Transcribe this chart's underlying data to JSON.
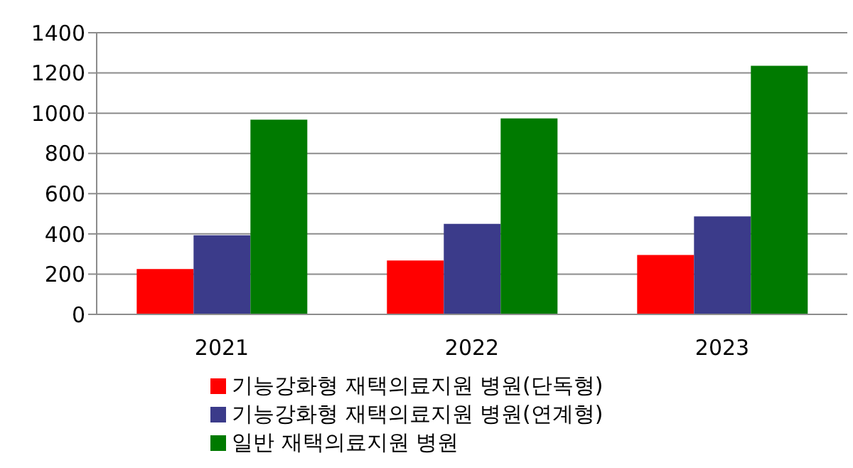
{
  "chart_data": {
    "type": "bar",
    "categories": [
      "2021",
      "2022",
      "2023"
    ],
    "series": [
      {
        "name": "기능강화형 재택의료지원 병원(단독형)",
        "color": "#ff0000",
        "values": [
          225,
          268,
          295
        ]
      },
      {
        "name": "기능강화형 재택의료지원 병원(연계형)",
        "color": "#3b3b8a",
        "values": [
          393,
          450,
          487
        ]
      },
      {
        "name": "일반 재택의료지원 병원",
        "color": "#007a00",
        "values": [
          968,
          974,
          1236
        ]
      }
    ],
    "ylim": [
      0,
      1400
    ],
    "yticks": [
      0,
      200,
      400,
      600,
      800,
      1000,
      1200,
      1400
    ],
    "grid": "y",
    "legend": "bottom"
  }
}
